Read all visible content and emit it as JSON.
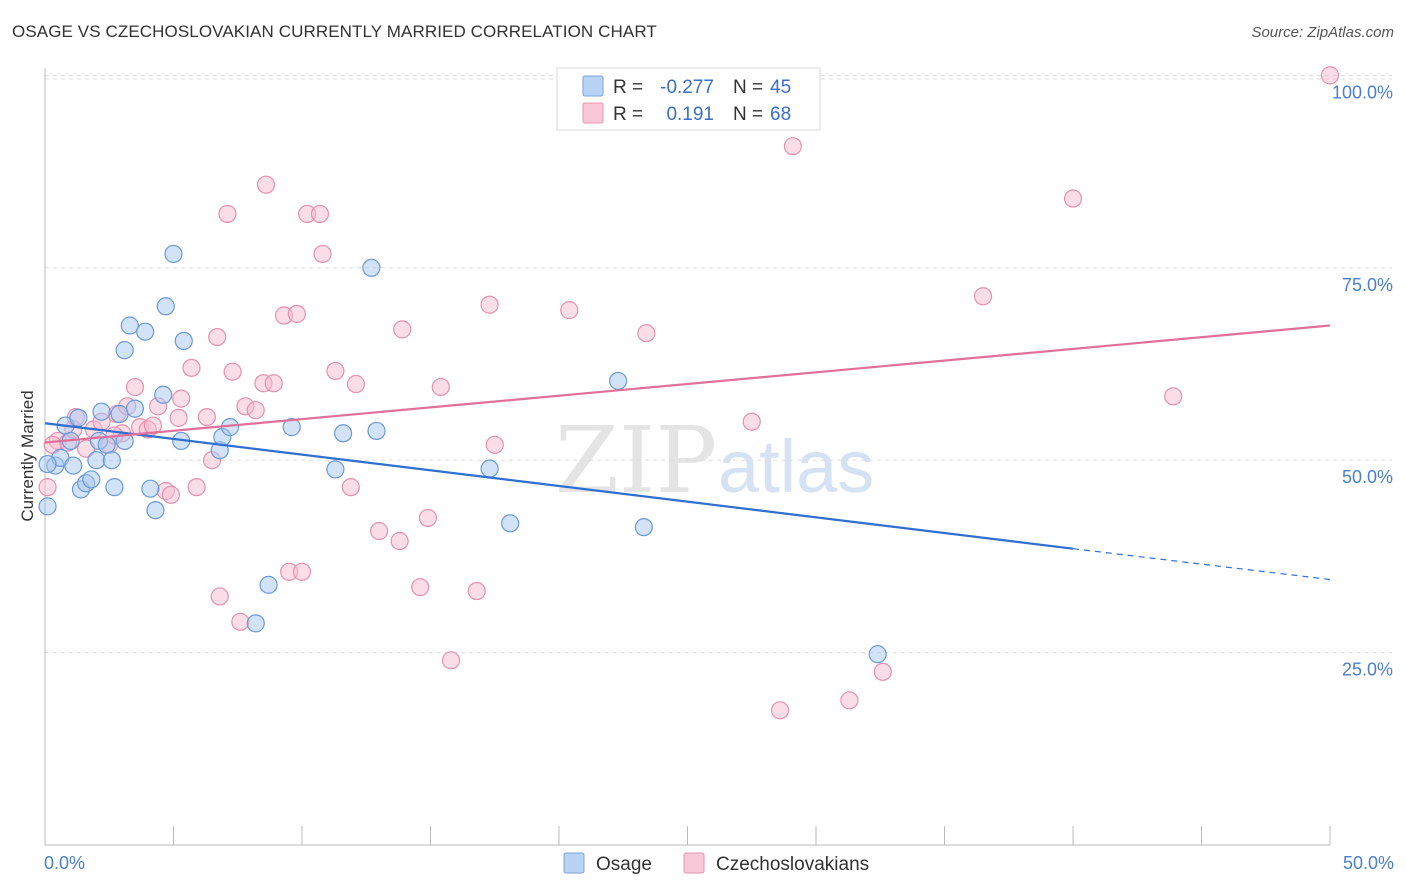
{
  "title": "OSAGE VS CZECHOSLOVAKIAN CURRENTLY MARRIED CORRELATION CHART",
  "source": "Source: ZipAtlas.com",
  "watermark": {
    "zip": "ZIP",
    "atlas": "atlas"
  },
  "colors": {
    "osage_fill": "#a8c8f0",
    "osage_stroke": "#6a9ad8",
    "osage_line": "#2f6fd0",
    "czech_fill": "#f8bcd0",
    "czech_stroke": "#e890b0",
    "czech_line": "#e0709a",
    "tick_text": "#4a7fd0",
    "grid": "#dddddd"
  },
  "legend": {
    "rows": [
      {
        "r_label": "R =",
        "r_value": "-0.277",
        "n_label": "N =",
        "n_value": "45"
      },
      {
        "r_label": "R =",
        "r_value": "0.191",
        "n_label": "N =",
        "n_value": "68"
      }
    ]
  },
  "bottom_legend": [
    "Osage",
    "Czechoslovakians"
  ],
  "chart_data": {
    "type": "scatter",
    "xlabel": "",
    "ylabel": "Currently Married",
    "xlim": [
      0,
      50
    ],
    "ylim": [
      0,
      102
    ],
    "x_tick_labels": [
      "0.0%",
      "50.0%"
    ],
    "y_ticks": [
      25,
      50,
      75,
      100
    ],
    "y_tick_labels": [
      "25.0%",
      "50.0%",
      "75.0%",
      "100.0%"
    ],
    "grid": true,
    "series": [
      {
        "name": "Osage",
        "r": -0.277,
        "n": 45,
        "trend": {
          "x0": 0,
          "y0": 54.8,
          "x1": 40,
          "y1": 38.5,
          "dashed_to_x": 50,
          "dashed_y": 34.5
        },
        "points": [
          [
            0.1,
            44.0
          ],
          [
            0.4,
            49.3
          ],
          [
            0.6,
            50.3
          ],
          [
            0.8,
            54.5
          ],
          [
            1.0,
            52.5
          ],
          [
            1.1,
            49.3
          ],
          [
            1.3,
            55.5
          ],
          [
            1.4,
            46.2
          ],
          [
            1.6,
            47.0
          ],
          [
            1.8,
            47.5
          ],
          [
            2.0,
            50.0
          ],
          [
            2.1,
            52.5
          ],
          [
            2.2,
            56.3
          ],
          [
            2.4,
            52.0
          ],
          [
            2.6,
            50.0
          ],
          [
            2.7,
            46.5
          ],
          [
            2.9,
            56.0
          ],
          [
            3.1,
            52.5
          ],
          [
            3.1,
            64.3
          ],
          [
            3.3,
            67.5
          ],
          [
            3.5,
            56.7
          ],
          [
            3.9,
            66.7
          ],
          [
            4.1,
            46.3
          ],
          [
            4.3,
            43.5
          ],
          [
            4.6,
            58.5
          ],
          [
            4.7,
            70.0
          ],
          [
            5.0,
            76.8
          ],
          [
            5.3,
            52.5
          ],
          [
            5.4,
            65.5
          ],
          [
            6.8,
            51.3
          ],
          [
            6.9,
            53.0
          ],
          [
            7.2,
            54.3
          ],
          [
            8.2,
            28.8
          ],
          [
            8.7,
            33.8
          ],
          [
            9.6,
            54.3
          ],
          [
            11.3,
            48.8
          ],
          [
            11.6,
            53.5
          ],
          [
            12.7,
            75.0
          ],
          [
            12.9,
            53.8
          ],
          [
            17.3,
            48.9
          ],
          [
            18.1,
            41.8
          ],
          [
            22.3,
            60.3
          ],
          [
            23.3,
            41.3
          ],
          [
            32.4,
            24.8
          ],
          [
            0.1,
            49.5
          ]
        ]
      },
      {
        "name": "Czechoslovakians",
        "r": 0.191,
        "n": 68,
        "trend": {
          "x0": 0,
          "y0": 52.3,
          "x1": 50,
          "y1": 67.5
        },
        "points": [
          [
            0.1,
            46.5
          ],
          [
            0.5,
            52.5
          ],
          [
            0.9,
            52.3
          ],
          [
            1.1,
            54.0
          ],
          [
            1.6,
            51.5
          ],
          [
            1.9,
            54.0
          ],
          [
            2.2,
            55.0
          ],
          [
            2.5,
            52.0
          ],
          [
            2.8,
            56.0
          ],
          [
            3.0,
            53.5
          ],
          [
            3.2,
            57.0
          ],
          [
            3.5,
            59.5
          ],
          [
            3.7,
            54.3
          ],
          [
            4.0,
            54.0
          ],
          [
            4.2,
            54.5
          ],
          [
            4.4,
            57.0
          ],
          [
            4.7,
            46.0
          ],
          [
            4.9,
            45.5
          ],
          [
            5.2,
            55.5
          ],
          [
            5.3,
            58.0
          ],
          [
            5.7,
            62.0
          ],
          [
            5.9,
            46.5
          ],
          [
            6.3,
            55.6
          ],
          [
            6.5,
            50.0
          ],
          [
            6.7,
            66.0
          ],
          [
            6.8,
            32.3
          ],
          [
            7.1,
            82.0
          ],
          [
            7.3,
            61.5
          ],
          [
            7.6,
            29.0
          ],
          [
            7.8,
            57.0
          ],
          [
            8.2,
            56.5
          ],
          [
            8.5,
            60.0
          ],
          [
            8.6,
            85.8
          ],
          [
            8.9,
            60.0
          ],
          [
            9.3,
            68.8
          ],
          [
            9.5,
            35.5
          ],
          [
            9.8,
            69.0
          ],
          [
            10.0,
            35.5
          ],
          [
            10.2,
            82.0
          ],
          [
            10.7,
            82.0
          ],
          [
            10.8,
            76.8
          ],
          [
            11.3,
            61.6
          ],
          [
            11.9,
            46.5
          ],
          [
            12.1,
            59.9
          ],
          [
            13.0,
            40.8
          ],
          [
            13.8,
            39.5
          ],
          [
            13.9,
            67.0
          ],
          [
            14.6,
            33.5
          ],
          [
            14.9,
            42.5
          ],
          [
            15.4,
            59.5
          ],
          [
            15.8,
            24.0
          ],
          [
            16.8,
            33.0
          ],
          [
            17.3,
            70.2
          ],
          [
            17.5,
            52.0
          ],
          [
            20.4,
            69.5
          ],
          [
            23.4,
            66.5
          ],
          [
            27.5,
            55.0
          ],
          [
            28.6,
            17.5
          ],
          [
            29.1,
            90.8
          ],
          [
            31.3,
            18.8
          ],
          [
            32.6,
            22.5
          ],
          [
            36.5,
            71.3
          ],
          [
            40.0,
            84.0
          ],
          [
            43.9,
            58.3
          ],
          [
            50.0,
            100.0
          ],
          [
            1.2,
            55.6
          ],
          [
            0.3,
            52.0
          ],
          [
            2.7,
            53.2
          ]
        ]
      }
    ]
  }
}
